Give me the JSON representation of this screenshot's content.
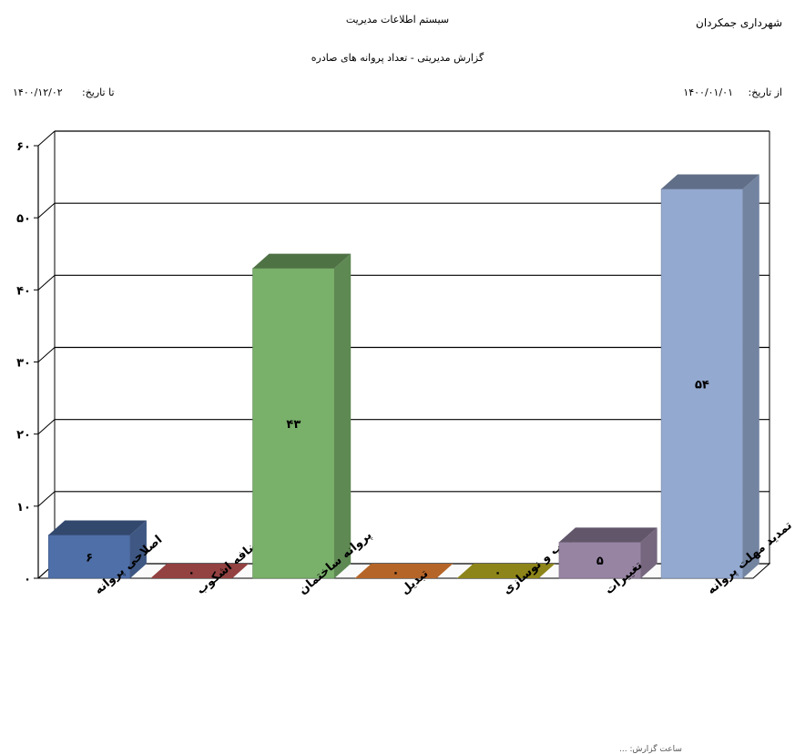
{
  "header": {
    "municipality": "شهرداری جمکردان",
    "system_title": "سیستم اطلاعات مدیریت",
    "report_title": "گزارش مدیریتی - تعداد پروانه های صادره",
    "from_label": "از تاریخ:",
    "from_value": "۱۴۰۰/۰۱/۰۱",
    "to_label": "تا تاریخ:",
    "to_value": "۱۴۰۰/۱۲/۰۲"
  },
  "footer": {
    "text": "ساعت گزارش: ..."
  },
  "chart_data": {
    "type": "bar",
    "title": "",
    "xlabel": "",
    "ylabel": "",
    "ylim": [
      0,
      60
    ],
    "yticks": [
      0,
      10,
      20,
      30,
      40,
      50,
      60
    ],
    "ytick_labels": [
      "۰",
      "۱۰",
      "۲۰",
      "۳۰",
      "۴۰",
      "۵۰",
      "۶۰"
    ],
    "grid": true,
    "categories": [
      "اصلاحی پروانه",
      "اضافه اشکوب",
      "پروانه ساختمان",
      "تبدیل",
      "تخریب و نوسازی",
      "تغییرات",
      "تمدید مهلت پروانه"
    ],
    "values": [
      6,
      0,
      43,
      0,
      0,
      5,
      54
    ],
    "value_labels": [
      "۶",
      "۰",
      "۴۳",
      "۰",
      "۰",
      "۵",
      "۵۴"
    ],
    "colors": [
      "#4f6fa8",
      "#9b4444",
      "#79b06a",
      "#c06a2a",
      "#948c1a",
      "#9784a3",
      "#93a9cf"
    ]
  }
}
